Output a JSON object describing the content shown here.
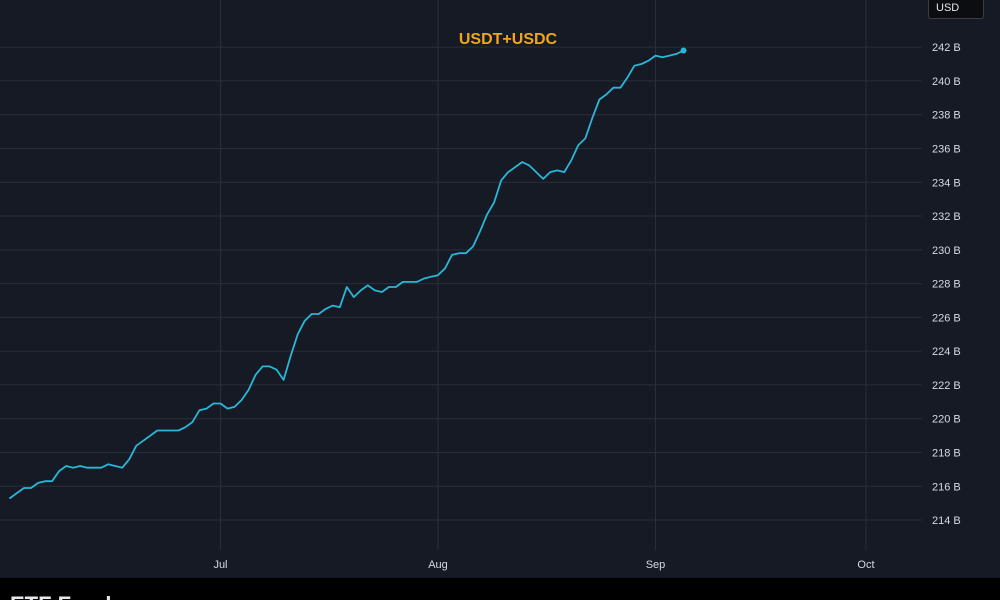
{
  "unit_selector": {
    "label": "USD"
  },
  "footer": {
    "caption": "ETF Fund"
  },
  "colors": {
    "background": "#161a25",
    "grid": "#2a2e39",
    "line": "#29b6d8",
    "title": "#f2a51a",
    "tick_text": "#d6d9e0"
  },
  "chart_data": {
    "type": "line",
    "title": "USDT+USDC",
    "xlabel": "",
    "ylabel": "",
    "x_ticks": [
      {
        "label": "Jul",
        "date": "2025-07-01"
      },
      {
        "label": "Aug",
        "date": "2025-08-01"
      },
      {
        "label": "Sep",
        "date": "2025-09-01"
      },
      {
        "label": "Oct",
        "date": "2025-10-01"
      }
    ],
    "y_ticks": [
      "214 B",
      "216 B",
      "218 B",
      "220 B",
      "222 B",
      "224 B",
      "226 B",
      "228 B",
      "230 B",
      "232 B",
      "234 B",
      "236 B",
      "238 B",
      "240 B",
      "242 B"
    ],
    "y_tick_values": [
      214,
      216,
      218,
      220,
      222,
      224,
      226,
      228,
      230,
      232,
      234,
      236,
      238,
      240,
      242
    ],
    "xlim": [
      "2025-06-01",
      "2025-10-03"
    ],
    "ylim": [
      212.7,
      244.2
    ],
    "y_unit": "B USD",
    "grid": true,
    "legend": "none",
    "series": [
      {
        "values": [
          [
            "2025-06-01",
            215.3
          ],
          [
            "2025-06-02",
            215.6
          ],
          [
            "2025-06-03",
            215.9
          ],
          [
            "2025-06-04",
            215.9
          ],
          [
            "2025-06-05",
            216.2
          ],
          [
            "2025-06-06",
            216.3
          ],
          [
            "2025-06-07",
            216.3
          ],
          [
            "2025-06-08",
            216.9
          ],
          [
            "2025-06-09",
            217.2
          ],
          [
            "2025-06-10",
            217.1
          ],
          [
            "2025-06-11",
            217.2
          ],
          [
            "2025-06-12",
            217.1
          ],
          [
            "2025-06-13",
            217.1
          ],
          [
            "2025-06-14",
            217.1
          ],
          [
            "2025-06-15",
            217.3
          ],
          [
            "2025-06-16",
            217.2
          ],
          [
            "2025-06-17",
            217.1
          ],
          [
            "2025-06-18",
            217.6
          ],
          [
            "2025-06-19",
            218.4
          ],
          [
            "2025-06-20",
            218.7
          ],
          [
            "2025-06-21",
            219.0
          ],
          [
            "2025-06-22",
            219.3
          ],
          [
            "2025-06-23",
            219.3
          ],
          [
            "2025-06-24",
            219.3
          ],
          [
            "2025-06-25",
            219.3
          ],
          [
            "2025-06-26",
            219.5
          ],
          [
            "2025-06-27",
            219.8
          ],
          [
            "2025-06-28",
            220.5
          ],
          [
            "2025-06-29",
            220.6
          ],
          [
            "2025-06-30",
            220.9
          ],
          [
            "2025-07-01",
            220.9
          ],
          [
            "2025-07-02",
            220.6
          ],
          [
            "2025-07-03",
            220.7
          ],
          [
            "2025-07-04",
            221.1
          ],
          [
            "2025-07-05",
            221.7
          ],
          [
            "2025-07-06",
            222.6
          ],
          [
            "2025-07-07",
            223.1
          ],
          [
            "2025-07-08",
            223.1
          ],
          [
            "2025-07-09",
            222.9
          ],
          [
            "2025-07-10",
            222.3
          ],
          [
            "2025-07-11",
            223.7
          ],
          [
            "2025-07-12",
            225.0
          ],
          [
            "2025-07-13",
            225.8
          ],
          [
            "2025-07-14",
            226.2
          ],
          [
            "2025-07-15",
            226.2
          ],
          [
            "2025-07-16",
            226.5
          ],
          [
            "2025-07-17",
            226.7
          ],
          [
            "2025-07-18",
            226.6
          ],
          [
            "2025-07-19",
            227.8
          ],
          [
            "2025-07-20",
            227.2
          ],
          [
            "2025-07-21",
            227.6
          ],
          [
            "2025-07-22",
            227.9
          ],
          [
            "2025-07-23",
            227.6
          ],
          [
            "2025-07-24",
            227.5
          ],
          [
            "2025-07-25",
            227.8
          ],
          [
            "2025-07-26",
            227.8
          ],
          [
            "2025-07-27",
            228.1
          ],
          [
            "2025-07-28",
            228.1
          ],
          [
            "2025-07-29",
            228.1
          ],
          [
            "2025-07-30",
            228.3
          ],
          [
            "2025-07-31",
            228.4
          ],
          [
            "2025-08-01",
            228.5
          ],
          [
            "2025-08-02",
            228.9
          ],
          [
            "2025-08-03",
            229.7
          ],
          [
            "2025-08-04",
            229.8
          ],
          [
            "2025-08-05",
            229.8
          ],
          [
            "2025-08-06",
            230.2
          ],
          [
            "2025-08-07",
            231.1
          ],
          [
            "2025-08-08",
            232.1
          ],
          [
            "2025-08-09",
            232.8
          ],
          [
            "2025-08-10",
            234.1
          ],
          [
            "2025-08-11",
            234.6
          ],
          [
            "2025-08-12",
            234.9
          ],
          [
            "2025-08-13",
            235.2
          ],
          [
            "2025-08-14",
            235.0
          ],
          [
            "2025-08-15",
            234.6
          ],
          [
            "2025-08-16",
            234.2
          ],
          [
            "2025-08-17",
            234.6
          ],
          [
            "2025-08-18",
            234.7
          ],
          [
            "2025-08-19",
            234.6
          ],
          [
            "2025-08-20",
            235.3
          ],
          [
            "2025-08-21",
            236.2
          ],
          [
            "2025-08-22",
            236.6
          ],
          [
            "2025-08-23",
            237.8
          ],
          [
            "2025-08-24",
            238.9
          ],
          [
            "2025-08-25",
            239.2
          ],
          [
            "2025-08-26",
            239.6
          ],
          [
            "2025-08-27",
            239.6
          ],
          [
            "2025-08-28",
            240.2
          ],
          [
            "2025-08-29",
            240.9
          ],
          [
            "2025-08-30",
            241.0
          ],
          [
            "2025-08-31",
            241.2
          ],
          [
            "2025-09-01",
            241.5
          ],
          [
            "2025-09-02",
            241.4
          ],
          [
            "2025-09-03",
            241.5
          ],
          [
            "2025-09-04",
            241.6
          ],
          [
            "2025-09-05",
            241.8
          ]
        ]
      }
    ]
  }
}
